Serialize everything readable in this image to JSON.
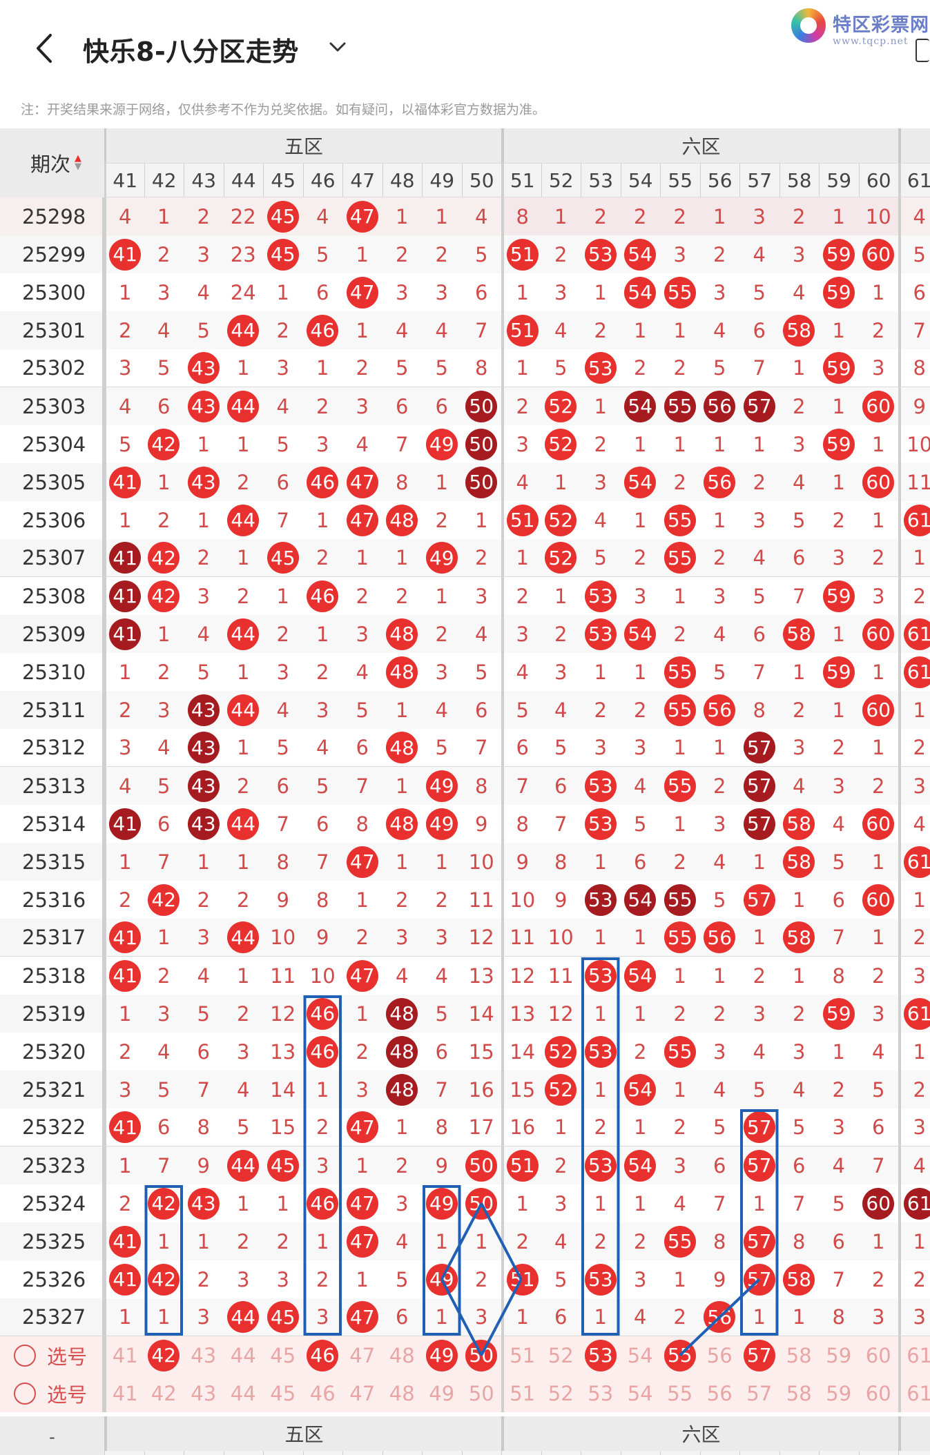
{
  "header": {
    "title": "快乐8-八分区走势",
    "logo_name": "特区彩票网",
    "logo_url": "www.tqcp.net",
    "note": "注：开奖结果来源于网络，仅供参考不作为兑奖依据。如有疑问，以福体彩官方数据为准。"
  },
  "table": {
    "issue_header": "期次",
    "zones": [
      {
        "label": "五区",
        "columns": [
          "41",
          "42",
          "43",
          "44",
          "45",
          "46",
          "47",
          "48",
          "49",
          "50"
        ]
      },
      {
        "label": "六区",
        "columns": [
          "51",
          "52",
          "53",
          "54",
          "55",
          "56",
          "57",
          "58",
          "59",
          "60"
        ]
      },
      {
        "label": "",
        "columns": [
          "61"
        ]
      }
    ],
    "rows": [
      {
        "issue": "25298",
        "cells": [
          "4",
          "1",
          "2",
          "22",
          "45",
          "4",
          "47",
          "1",
          "1",
          "4",
          "8",
          "1",
          "2",
          "2",
          "2",
          "1",
          "3",
          "2",
          "1",
          "10",
          "4"
        ],
        "balls": {
          "45": "red",
          "47": "red"
        }
      },
      {
        "issue": "25299",
        "cells": [
          "41",
          "2",
          "3",
          "23",
          "45",
          "5",
          "1",
          "2",
          "2",
          "5",
          "51",
          "2",
          "53",
          "54",
          "3",
          "2",
          "4",
          "3",
          "59",
          "60",
          "5"
        ],
        "balls": {
          "41": "red",
          "45": "red",
          "51": "red",
          "53": "red",
          "54": "red",
          "59": "red",
          "60": "red"
        }
      },
      {
        "issue": "25300",
        "cells": [
          "1",
          "3",
          "4",
          "24",
          "1",
          "6",
          "47",
          "3",
          "3",
          "6",
          "1",
          "3",
          "1",
          "54",
          "55",
          "3",
          "5",
          "4",
          "59",
          "1",
          "6"
        ],
        "balls": {
          "47": "red",
          "54": "red",
          "55": "red",
          "59": "red"
        }
      },
      {
        "issue": "25301",
        "cells": [
          "2",
          "4",
          "5",
          "44",
          "2",
          "46",
          "1",
          "4",
          "4",
          "7",
          "51",
          "4",
          "2",
          "1",
          "1",
          "4",
          "6",
          "58",
          "1",
          "2",
          "7"
        ],
        "balls": {
          "44": "red",
          "46": "red",
          "51": "red",
          "58": "red"
        }
      },
      {
        "issue": "25302",
        "cells": [
          "3",
          "5",
          "43",
          "1",
          "3",
          "1",
          "2",
          "5",
          "5",
          "8",
          "1",
          "5",
          "53",
          "2",
          "2",
          "5",
          "7",
          "1",
          "59",
          "3",
          "8"
        ],
        "balls": {
          "43": "red",
          "53": "red",
          "59": "red"
        }
      },
      {
        "issue": "25303",
        "cells": [
          "4",
          "6",
          "43",
          "44",
          "4",
          "2",
          "3",
          "6",
          "6",
          "50",
          "2",
          "52",
          "1",
          "54",
          "55",
          "56",
          "57",
          "2",
          "1",
          "60",
          "9"
        ],
        "balls": {
          "43": "red",
          "44": "red",
          "50": "dark",
          "52": "red",
          "54": "dark",
          "55": "dark",
          "56": "dark",
          "57": "dark",
          "60": "red"
        }
      },
      {
        "issue": "25304",
        "cells": [
          "5",
          "42",
          "1",
          "1",
          "5",
          "3",
          "4",
          "7",
          "49",
          "50",
          "3",
          "52",
          "2",
          "1",
          "1",
          "1",
          "1",
          "3",
          "59",
          "1",
          "10"
        ],
        "balls": {
          "42": "red",
          "49": "red",
          "50": "dark",
          "52": "red",
          "59": "red"
        }
      },
      {
        "issue": "25305",
        "cells": [
          "41",
          "1",
          "43",
          "2",
          "6",
          "46",
          "47",
          "8",
          "1",
          "50",
          "4",
          "1",
          "3",
          "54",
          "2",
          "56",
          "2",
          "4",
          "1",
          "60",
          "11"
        ],
        "balls": {
          "41": "red",
          "43": "red",
          "46": "red",
          "47": "red",
          "50": "dark",
          "54": "red",
          "56": "red",
          "60": "red"
        }
      },
      {
        "issue": "25306",
        "cells": [
          "1",
          "2",
          "1",
          "44",
          "7",
          "1",
          "47",
          "48",
          "2",
          "1",
          "51",
          "52",
          "4",
          "1",
          "55",
          "1",
          "3",
          "5",
          "2",
          "1",
          "61"
        ],
        "balls": {
          "44": "red",
          "47": "red",
          "48": "red",
          "51": "red",
          "52": "red",
          "55": "red",
          "61": "red"
        }
      },
      {
        "issue": "25307",
        "cells": [
          "41",
          "42",
          "2",
          "1",
          "45",
          "2",
          "1",
          "1",
          "49",
          "2",
          "1",
          "52",
          "5",
          "2",
          "55",
          "2",
          "4",
          "6",
          "3",
          "2",
          "1"
        ],
        "balls": {
          "41": "dark",
          "42": "red",
          "45": "red",
          "49": "red",
          "52": "red",
          "55": "red"
        }
      },
      {
        "issue": "25308",
        "cells": [
          "41",
          "42",
          "3",
          "2",
          "1",
          "46",
          "2",
          "2",
          "1",
          "3",
          "2",
          "1",
          "53",
          "3",
          "1",
          "3",
          "5",
          "7",
          "59",
          "3",
          "2"
        ],
        "balls": {
          "41": "dark",
          "42": "red",
          "46": "red",
          "53": "red",
          "59": "red"
        }
      },
      {
        "issue": "25309",
        "cells": [
          "41",
          "1",
          "4",
          "44",
          "2",
          "1",
          "3",
          "48",
          "2",
          "4",
          "3",
          "2",
          "53",
          "54",
          "2",
          "4",
          "6",
          "58",
          "1",
          "60",
          "61"
        ],
        "balls": {
          "41": "dark",
          "44": "red",
          "48": "red",
          "53": "red",
          "54": "red",
          "58": "red",
          "60": "red",
          "61": "red"
        }
      },
      {
        "issue": "25310",
        "cells": [
          "1",
          "2",
          "5",
          "1",
          "3",
          "2",
          "4",
          "48",
          "3",
          "5",
          "4",
          "3",
          "1",
          "1",
          "55",
          "5",
          "7",
          "1",
          "59",
          "1",
          "61"
        ],
        "balls": {
          "48": "red",
          "55": "red",
          "59": "red",
          "61": "red"
        }
      },
      {
        "issue": "25311",
        "cells": [
          "2",
          "3",
          "43",
          "44",
          "4",
          "3",
          "5",
          "1",
          "4",
          "6",
          "5",
          "4",
          "2",
          "2",
          "55",
          "56",
          "8",
          "2",
          "1",
          "60",
          "1"
        ],
        "balls": {
          "43": "dark",
          "44": "red",
          "55": "red",
          "56": "red",
          "60": "red"
        }
      },
      {
        "issue": "25312",
        "cells": [
          "3",
          "4",
          "43",
          "1",
          "5",
          "4",
          "6",
          "48",
          "5",
          "7",
          "6",
          "5",
          "3",
          "3",
          "1",
          "1",
          "57",
          "3",
          "2",
          "1",
          "2"
        ],
        "balls": {
          "43": "dark",
          "48": "red",
          "57": "dark"
        }
      },
      {
        "issue": "25313",
        "cells": [
          "4",
          "5",
          "43",
          "2",
          "6",
          "5",
          "7",
          "1",
          "49",
          "8",
          "7",
          "6",
          "53",
          "4",
          "55",
          "2",
          "57",
          "4",
          "3",
          "2",
          "3"
        ],
        "balls": {
          "43": "dark",
          "49": "red",
          "53": "red",
          "55": "red",
          "57": "dark"
        }
      },
      {
        "issue": "25314",
        "cells": [
          "41",
          "6",
          "43",
          "44",
          "7",
          "6",
          "8",
          "48",
          "49",
          "9",
          "8",
          "7",
          "53",
          "5",
          "1",
          "3",
          "57",
          "58",
          "4",
          "60",
          "4"
        ],
        "balls": {
          "41": "dark",
          "43": "dark",
          "44": "red",
          "48": "red",
          "49": "red",
          "53": "red",
          "57": "dark",
          "58": "red",
          "60": "red"
        }
      },
      {
        "issue": "25315",
        "cells": [
          "1",
          "7",
          "1",
          "1",
          "8",
          "7",
          "47",
          "1",
          "1",
          "10",
          "9",
          "8",
          "1",
          "6",
          "2",
          "4",
          "1",
          "58",
          "5",
          "1",
          "61"
        ],
        "balls": {
          "47": "red",
          "58": "red",
          "61": "red"
        }
      },
      {
        "issue": "25316",
        "cells": [
          "2",
          "42",
          "2",
          "2",
          "9",
          "8",
          "1",
          "2",
          "2",
          "11",
          "10",
          "9",
          "53",
          "54",
          "55",
          "5",
          "57",
          "1",
          "6",
          "60",
          "1"
        ],
        "balls": {
          "42": "red",
          "53": "dark",
          "54": "dark",
          "55": "dark",
          "57": "red",
          "60": "red"
        }
      },
      {
        "issue": "25317",
        "cells": [
          "41",
          "1",
          "3",
          "44",
          "10",
          "9",
          "2",
          "3",
          "3",
          "12",
          "11",
          "10",
          "1",
          "1",
          "55",
          "56",
          "1",
          "58",
          "7",
          "1",
          "2"
        ],
        "balls": {
          "41": "red",
          "44": "red",
          "55": "red",
          "56": "red",
          "58": "red"
        }
      },
      {
        "issue": "25318",
        "cells": [
          "41",
          "2",
          "4",
          "1",
          "11",
          "10",
          "47",
          "4",
          "4",
          "13",
          "12",
          "11",
          "53",
          "54",
          "1",
          "1",
          "2",
          "1",
          "8",
          "2",
          "3"
        ],
        "balls": {
          "41": "red",
          "47": "red",
          "53": "red",
          "54": "red"
        }
      },
      {
        "issue": "25319",
        "cells": [
          "1",
          "3",
          "5",
          "2",
          "12",
          "46",
          "1",
          "48",
          "5",
          "14",
          "13",
          "12",
          "1",
          "1",
          "2",
          "2",
          "3",
          "2",
          "59",
          "3",
          "61"
        ],
        "balls": {
          "46": "red",
          "48": "dark",
          "59": "red",
          "61": "red"
        }
      },
      {
        "issue": "25320",
        "cells": [
          "2",
          "4",
          "6",
          "3",
          "13",
          "46",
          "2",
          "48",
          "6",
          "15",
          "14",
          "52",
          "53",
          "2",
          "55",
          "3",
          "4",
          "3",
          "1",
          "4",
          "1"
        ],
        "balls": {
          "46": "red",
          "48": "dark",
          "52": "red",
          "53": "red",
          "55": "red"
        }
      },
      {
        "issue": "25321",
        "cells": [
          "3",
          "5",
          "7",
          "4",
          "14",
          "1",
          "3",
          "48",
          "7",
          "16",
          "15",
          "52",
          "1",
          "54",
          "1",
          "4",
          "5",
          "4",
          "2",
          "5",
          "2"
        ],
        "balls": {
          "48": "dark",
          "52": "red",
          "54": "red"
        }
      },
      {
        "issue": "25322",
        "cells": [
          "41",
          "6",
          "8",
          "5",
          "15",
          "2",
          "47",
          "1",
          "8",
          "17",
          "16",
          "1",
          "2",
          "1",
          "2",
          "5",
          "57",
          "5",
          "3",
          "6",
          "3"
        ],
        "balls": {
          "41": "red",
          "47": "red",
          "57": "red"
        }
      },
      {
        "issue": "25323",
        "cells": [
          "1",
          "7",
          "9",
          "44",
          "45",
          "3",
          "1",
          "2",
          "9",
          "50",
          "51",
          "2",
          "53",
          "54",
          "3",
          "6",
          "57",
          "6",
          "4",
          "7",
          "4"
        ],
        "balls": {
          "44": "red",
          "45": "red",
          "50": "red",
          "51": "red",
          "53": "red",
          "54": "red",
          "57": "red"
        }
      },
      {
        "issue": "25324",
        "cells": [
          "2",
          "42",
          "43",
          "1",
          "1",
          "46",
          "47",
          "3",
          "49",
          "50",
          "1",
          "3",
          "1",
          "1",
          "4",
          "7",
          "1",
          "7",
          "5",
          "60",
          "61"
        ],
        "balls": {
          "42": "red",
          "43": "red",
          "46": "red",
          "47": "red",
          "49": "red",
          "50": "red",
          "60": "dark",
          "61": "dark"
        }
      },
      {
        "issue": "25325",
        "cells": [
          "41",
          "1",
          "1",
          "2",
          "2",
          "1",
          "47",
          "4",
          "1",
          "1",
          "2",
          "4",
          "2",
          "2",
          "55",
          "8",
          "57",
          "8",
          "6",
          "1",
          "1"
        ],
        "balls": {
          "41": "red",
          "47": "red",
          "55": "red",
          "57": "red"
        }
      },
      {
        "issue": "25326",
        "cells": [
          "41",
          "42",
          "2",
          "3",
          "3",
          "2",
          "1",
          "5",
          "49",
          "2",
          "51",
          "5",
          "53",
          "3",
          "1",
          "9",
          "57",
          "58",
          "7",
          "2",
          "2"
        ],
        "balls": {
          "41": "red",
          "42": "red",
          "49": "red",
          "51": "red",
          "53": "red",
          "57": "red",
          "58": "red"
        }
      },
      {
        "issue": "25327",
        "cells": [
          "1",
          "1",
          "3",
          "44",
          "45",
          "3",
          "47",
          "6",
          "1",
          "3",
          "1",
          "6",
          "1",
          "4",
          "2",
          "56",
          "1",
          "1",
          "8",
          "3",
          "3"
        ],
        "balls": {
          "44": "red",
          "45": "red",
          "47": "red",
          "56": "red"
        }
      }
    ],
    "select_rows": [
      {
        "label": "选号",
        "cells": [
          "41",
          "42",
          "43",
          "44",
          "45",
          "46",
          "47",
          "48",
          "49",
          "50",
          "51",
          "52",
          "53",
          "54",
          "55",
          "56",
          "57",
          "58",
          "59",
          "60",
          "61"
        ],
        "balls": {
          "42": "red",
          "46": "red",
          "49": "red",
          "50": "red",
          "53": "red",
          "55": "red",
          "57": "red"
        }
      },
      {
        "label": "选号",
        "cells": [
          "41",
          "42",
          "43",
          "44",
          "45",
          "46",
          "47",
          "48",
          "49",
          "50",
          "51",
          "52",
          "53",
          "54",
          "55",
          "56",
          "57",
          "58",
          "59",
          "60",
          "61"
        ],
        "balls": {}
      }
    ],
    "footer_zones": [
      "五区",
      "六区"
    ]
  },
  "colors": {
    "ball_red": "#e8312f",
    "ball_dark": "#a51b1f",
    "miss_text": "#d04a4a",
    "annotation": "#1f5fb4"
  }
}
